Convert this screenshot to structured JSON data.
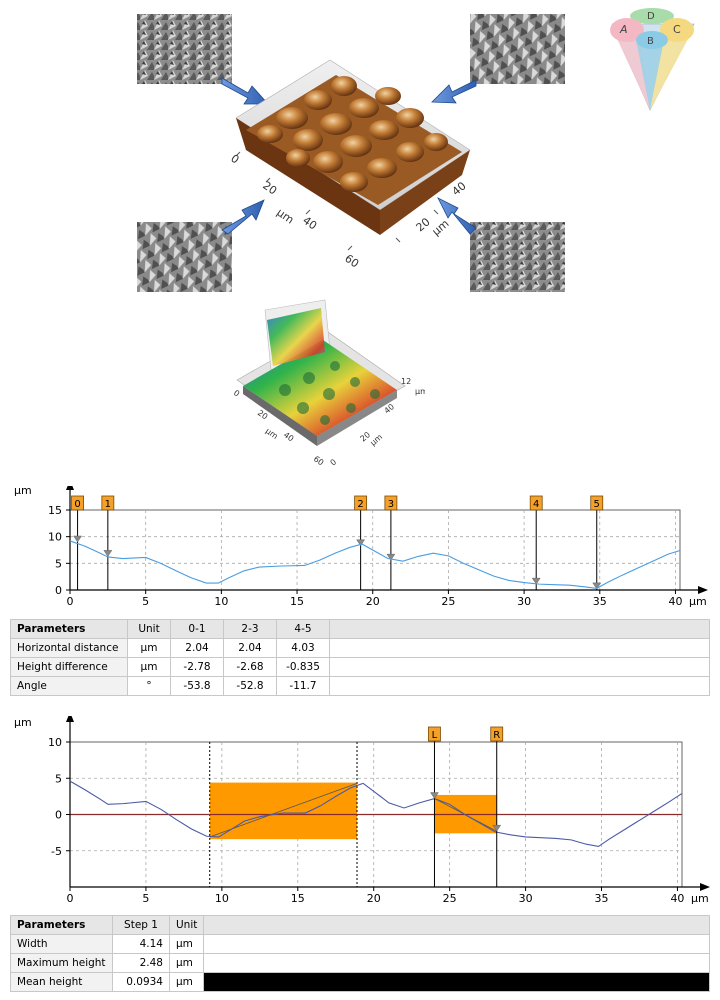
{
  "surface_3d": {
    "x_ticks": [
      "0",
      "20",
      "40",
      "60"
    ],
    "y_ticks": [
      "20",
      "40"
    ],
    "unit": "µm",
    "unit_y": "µm"
  },
  "surface_small": {
    "x_ticks": [
      "0",
      "20",
      "40",
      "60"
    ],
    "y_ticks": [
      "20",
      "40"
    ],
    "z_tick": "12",
    "unit": "µm",
    "unit_y": "µm",
    "z_unit": "µm",
    "y_tick_zero": "0"
  },
  "colors": {
    "profile_line": "#4a9ce0",
    "marker_bg": "#f5a028",
    "step_fill": "#ff9900",
    "grid": "#aaaaaa",
    "arrow_blue": "#3a6ec0",
    "surface_brown": "#b86a2a"
  },
  "venn_icon": {
    "labels": [
      "D",
      "A",
      "B",
      "C"
    ]
  },
  "chart_data": [
    {
      "type": "line",
      "ylabel": "µm",
      "xlabel": "µm",
      "ylim": [
        0,
        15
      ],
      "xlim": [
        0,
        40.3
      ],
      "y_ticks": [
        "0",
        "5",
        "10",
        "15"
      ],
      "x_ticks": [
        "0",
        "5",
        "10",
        "15",
        "20",
        "25",
        "30",
        "35",
        "40"
      ],
      "grid": true,
      "markers": [
        {
          "label": "0",
          "x": 0.5,
          "y": 9.0
        },
        {
          "label": "1",
          "x": 2.5,
          "y": 6.3
        },
        {
          "label": "2",
          "x": 19.2,
          "y": 8.3
        },
        {
          "label": "3",
          "x": 21.2,
          "y": 5.6
        },
        {
          "label": "4",
          "x": 30.8,
          "y": 1.1
        },
        {
          "label": "5",
          "x": 34.8,
          "y": 0.2
        }
      ],
      "series": [
        {
          "x": [
            0,
            1,
            2,
            2.5,
            3.5,
            5,
            6,
            7,
            8,
            9,
            9.8,
            10.5,
            11.5,
            12.5,
            14,
            15.5,
            16.5,
            17.5,
            18.5,
            19.3,
            20,
            21,
            22,
            23,
            24,
            25,
            26,
            27,
            28,
            29,
            30,
            31,
            32,
            33,
            34,
            34.8,
            35.5,
            36.5,
            37.5,
            38.5,
            39.5,
            40.3
          ],
          "y": [
            9.2,
            8.2,
            6.9,
            6.2,
            5.9,
            6.1,
            5.0,
            3.6,
            2.3,
            1.3,
            1.3,
            2.3,
            3.6,
            4.3,
            4.5,
            4.6,
            5.6,
            6.9,
            8.0,
            8.6,
            7.5,
            5.9,
            5.4,
            6.3,
            6.9,
            6.4,
            5.0,
            3.8,
            2.6,
            1.8,
            1.4,
            1.1,
            1.0,
            0.9,
            0.6,
            0.3,
            1.4,
            2.8,
            4.1,
            5.4,
            6.7,
            7.4
          ]
        }
      ]
    },
    {
      "type": "line",
      "ylabel": "µm",
      "xlabel": "µm",
      "ylim": [
        -10,
        10
      ],
      "xlim": [
        0,
        40.3
      ],
      "y_ticks": [
        "-5",
        "0",
        "5",
        "10"
      ],
      "x_ticks": [
        "0",
        "5",
        "10",
        "15",
        "20",
        "25",
        "30",
        "35",
        "40"
      ],
      "grid": true,
      "cursors": [
        {
          "label": "L",
          "x": 24.0,
          "y": 2.2
        },
        {
          "label": "R",
          "x": 28.1,
          "y": -2.3
        }
      ],
      "steps": [
        {
          "x0": 9.2,
          "x1": 18.9,
          "y0": -3.4,
          "y1": 4.4
        },
        {
          "x0": 24.0,
          "x1": 28.1,
          "y0": -2.6,
          "y1": 2.7
        }
      ],
      "series": [
        {
          "x": [
            0,
            1,
            2,
            2.5,
            3.5,
            5,
            6,
            7,
            8,
            9,
            9.8,
            10.5,
            11.5,
            12.5,
            14,
            15.5,
            16.5,
            17.5,
            18.5,
            19.3,
            20,
            21,
            22,
            23,
            24,
            25,
            26,
            27,
            28,
            29,
            30,
            31,
            32,
            33,
            34,
            34.8,
            35.5,
            36.5,
            37.5,
            38.5,
            39.5,
            40.3
          ],
          "y": [
            4.6,
            3.4,
            2.1,
            1.4,
            1.5,
            1.8,
            0.7,
            -0.7,
            -2.0,
            -3.0,
            -3.1,
            -2.2,
            -0.9,
            -0.3,
            0.2,
            0.2,
            1.2,
            2.5,
            3.7,
            4.3,
            3.2,
            1.6,
            0.9,
            1.6,
            2.2,
            1.4,
            0.0,
            -1.2,
            -2.4,
            -2.8,
            -3.1,
            -3.2,
            -3.3,
            -3.5,
            -4.1,
            -4.4,
            -3.4,
            -2.1,
            -0.8,
            0.5,
            1.8,
            2.9
          ]
        }
      ]
    }
  ],
  "table1": {
    "headers": [
      "Parameters",
      "Unit",
      "0-1",
      "2-3",
      "4-5"
    ],
    "rows": [
      [
        "Horizontal distance",
        "µm",
        "2.04",
        "2.04",
        "4.03"
      ],
      [
        "Height difference",
        "µm",
        "-2.78",
        "-2.68",
        "-0.835"
      ],
      [
        "Angle",
        "°",
        "-53.8",
        "-52.8",
        "-11.7"
      ]
    ]
  },
  "table2": {
    "headers": [
      "Parameters",
      "Step 1",
      "Unit"
    ],
    "rows": [
      [
        "Width",
        "4.14",
        "µm"
      ],
      [
        "Maximum height",
        "2.48",
        "µm"
      ],
      [
        "Mean height",
        "0.0934",
        "µm"
      ]
    ]
  }
}
